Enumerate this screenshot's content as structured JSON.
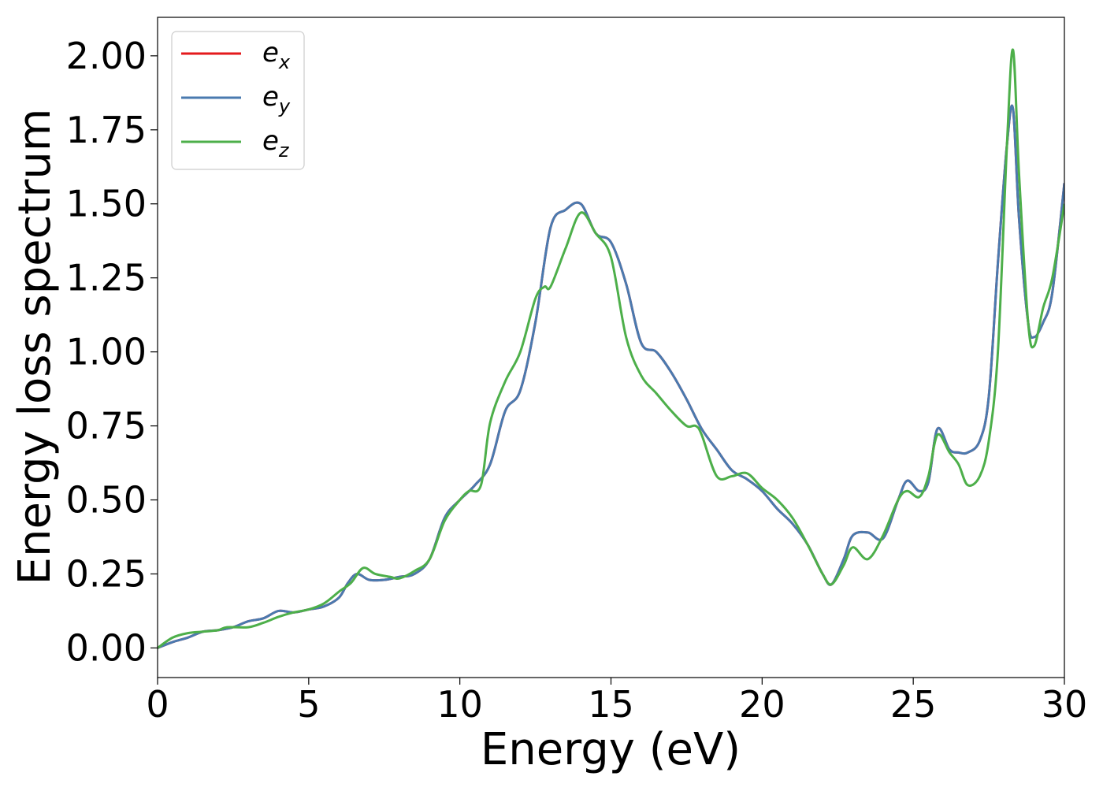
{
  "chart_data": {
    "type": "line",
    "title": "",
    "xlabel": "Energy (eV)",
    "ylabel": "Energy loss spectrum",
    "xlim": [
      0,
      30
    ],
    "ylim": [
      -0.1,
      2.13
    ],
    "xticks": [
      0,
      5,
      10,
      15,
      20,
      25,
      30
    ],
    "yticks": [
      0.0,
      0.25,
      0.5,
      0.75,
      1.0,
      1.25,
      1.5,
      1.75,
      2.0
    ],
    "ytick_labels": [
      "0.00",
      "0.25",
      "0.50",
      "0.75",
      "1.00",
      "1.25",
      "1.50",
      "1.75",
      "2.00"
    ],
    "xtick_labels": [
      "0",
      "5",
      "10",
      "15",
      "20",
      "25",
      "30"
    ],
    "grid": false,
    "legend": {
      "position": "top-left"
    },
    "series": [
      {
        "name": "e_x",
        "label_base": "e",
        "label_sub": "x",
        "color": "#e41a1c",
        "x": [
          0,
          0.5,
          1,
          1.5,
          2,
          2.5,
          3,
          3.5,
          4,
          4.5,
          5,
          5.5,
          6,
          6.3,
          6.6,
          7,
          7.5,
          8,
          8.5,
          9,
          9.5,
          10,
          10.5,
          11,
          11.5,
          12,
          12.5,
          13,
          13.5,
          14,
          14.5,
          15,
          15.5,
          16,
          16.5,
          17,
          17.5,
          18,
          18.5,
          19,
          19.5,
          20,
          20.5,
          21,
          21.5,
          22,
          22.3,
          22.7,
          23,
          23.5,
          24,
          24.5,
          24.8,
          25.2,
          25.5,
          25.8,
          26.2,
          26.5,
          26.8,
          27.2,
          27.5,
          27.8,
          28.1,
          28.3,
          28.5,
          28.8,
          29,
          29.3,
          29.6,
          30
        ],
        "y": [
          0.0,
          0.02,
          0.035,
          0.055,
          0.06,
          0.07,
          0.09,
          0.1,
          0.125,
          0.12,
          0.13,
          0.14,
          0.17,
          0.22,
          0.25,
          0.23,
          0.23,
          0.24,
          0.25,
          0.3,
          0.44,
          0.5,
          0.55,
          0.62,
          0.8,
          0.87,
          1.1,
          1.42,
          1.48,
          1.5,
          1.4,
          1.37,
          1.23,
          1.03,
          1.0,
          0.93,
          0.84,
          0.74,
          0.67,
          0.6,
          0.57,
          0.53,
          0.47,
          0.42,
          0.35,
          0.25,
          0.215,
          0.3,
          0.38,
          0.39,
          0.37,
          0.5,
          0.565,
          0.53,
          0.56,
          0.74,
          0.67,
          0.66,
          0.66,
          0.7,
          0.85,
          1.3,
          1.7,
          1.82,
          1.45,
          1.1,
          1.05,
          1.1,
          1.2,
          1.57
        ]
      },
      {
        "name": "e_y",
        "label_base": "e",
        "label_sub": "y",
        "color": "#4a7aaf",
        "x": [
          0,
          0.5,
          1,
          1.5,
          2,
          2.5,
          3,
          3.5,
          4,
          4.5,
          5,
          5.5,
          6,
          6.3,
          6.6,
          7,
          7.5,
          8,
          8.5,
          9,
          9.5,
          10,
          10.5,
          11,
          11.5,
          12,
          12.5,
          13,
          13.5,
          14,
          14.5,
          15,
          15.5,
          16,
          16.5,
          17,
          17.5,
          18,
          18.5,
          19,
          19.5,
          20,
          20.5,
          21,
          21.5,
          22,
          22.3,
          22.7,
          23,
          23.5,
          24,
          24.5,
          24.8,
          25.2,
          25.5,
          25.8,
          26.2,
          26.5,
          26.8,
          27.2,
          27.5,
          27.8,
          28.1,
          28.3,
          28.5,
          28.8,
          29,
          29.3,
          29.6,
          30
        ],
        "y": [
          0.0,
          0.02,
          0.035,
          0.055,
          0.06,
          0.07,
          0.09,
          0.1,
          0.125,
          0.12,
          0.13,
          0.14,
          0.17,
          0.22,
          0.25,
          0.23,
          0.23,
          0.24,
          0.25,
          0.3,
          0.44,
          0.5,
          0.55,
          0.62,
          0.8,
          0.87,
          1.1,
          1.42,
          1.48,
          1.5,
          1.4,
          1.37,
          1.23,
          1.03,
          1.0,
          0.93,
          0.84,
          0.74,
          0.67,
          0.6,
          0.57,
          0.53,
          0.47,
          0.42,
          0.35,
          0.25,
          0.215,
          0.3,
          0.38,
          0.39,
          0.37,
          0.5,
          0.565,
          0.53,
          0.56,
          0.74,
          0.67,
          0.66,
          0.66,
          0.7,
          0.85,
          1.3,
          1.7,
          1.82,
          1.45,
          1.1,
          1.05,
          1.1,
          1.2,
          1.57
        ]
      },
      {
        "name": "e_z",
        "label_base": "e",
        "label_sub": "z",
        "color": "#4daf4a",
        "x": [
          0,
          0.5,
          1,
          1.5,
          2,
          2.3,
          3,
          3.5,
          4,
          4.5,
          5,
          5.5,
          6,
          6.4,
          6.8,
          7.2,
          7.7,
          8,
          8.5,
          9,
          9.5,
          10,
          10.3,
          10.7,
          11,
          11.5,
          12,
          12.5,
          12.8,
          13,
          13.5,
          14,
          14.5,
          15,
          15.5,
          16,
          16.5,
          17,
          17.5,
          17.8,
          18,
          18.5,
          19,
          19.5,
          20,
          20.5,
          21,
          21.5,
          22,
          22.3,
          22.7,
          23,
          23.5,
          24,
          24.5,
          24.8,
          25.2,
          25.5,
          25.8,
          26.2,
          26.5,
          26.8,
          27.2,
          27.5,
          27.8,
          28.1,
          28.3,
          28.5,
          28.8,
          29,
          29.3,
          29.6,
          30
        ],
        "y": [
          0.0,
          0.035,
          0.05,
          0.055,
          0.06,
          0.07,
          0.07,
          0.085,
          0.105,
          0.12,
          0.13,
          0.15,
          0.19,
          0.22,
          0.27,
          0.25,
          0.24,
          0.235,
          0.26,
          0.3,
          0.43,
          0.5,
          0.53,
          0.55,
          0.76,
          0.9,
          1.0,
          1.18,
          1.22,
          1.22,
          1.35,
          1.47,
          1.4,
          1.32,
          1.05,
          0.92,
          0.86,
          0.8,
          0.75,
          0.75,
          0.72,
          0.58,
          0.58,
          0.59,
          0.54,
          0.5,
          0.44,
          0.35,
          0.25,
          0.215,
          0.28,
          0.34,
          0.3,
          0.38,
          0.5,
          0.53,
          0.51,
          0.58,
          0.72,
          0.66,
          0.62,
          0.55,
          0.58,
          0.7,
          1.0,
          1.7,
          2.02,
          1.6,
          1.1,
          1.02,
          1.15,
          1.25,
          1.5
        ]
      }
    ]
  }
}
